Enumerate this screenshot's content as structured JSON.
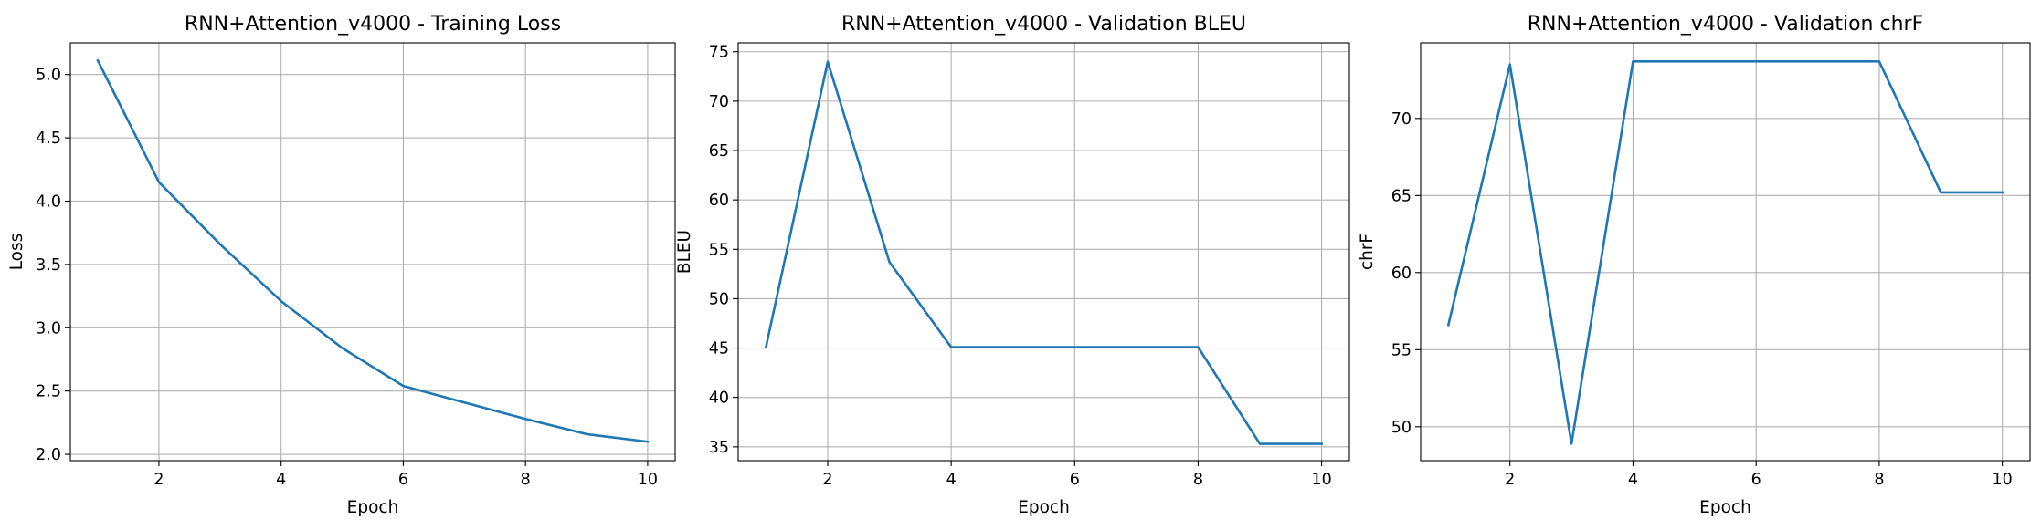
{
  "chart_data": [
    {
      "type": "line",
      "title": "RNN+Attention_v4000 - Training Loss",
      "xlabel": "Epoch",
      "ylabel": "Loss",
      "xlim": [
        0.55,
        10.45
      ],
      "ylim": [
        1.95,
        5.25
      ],
      "xticks": [
        2,
        4,
        6,
        8,
        10
      ],
      "yticks": [
        2.0,
        2.5,
        3.0,
        3.5,
        4.0,
        4.5,
        5.0
      ],
      "ytick_decimals": 1,
      "grid": true,
      "series": [
        {
          "x": [
            1,
            2,
            3,
            4,
            5,
            6,
            7,
            8,
            9,
            10
          ],
          "values": [
            5.11,
            4.15,
            3.66,
            3.21,
            2.84,
            2.54,
            2.41,
            2.28,
            2.16,
            2.1
          ]
        }
      ]
    },
    {
      "type": "line",
      "title": "RNN+Attention_v4000 - Validation BLEU",
      "xlabel": "Epoch",
      "ylabel": "BLEU",
      "xlim": [
        0.55,
        10.45
      ],
      "ylim": [
        33.6,
        75.9
      ],
      "xticks": [
        2,
        4,
        6,
        8,
        10
      ],
      "yticks": [
        35,
        40,
        45,
        50,
        55,
        60,
        65,
        70,
        75
      ],
      "ytick_decimals": 0,
      "grid": true,
      "series": [
        {
          "x": [
            1,
            2,
            3,
            4,
            5,
            6,
            7,
            8,
            9,
            10
          ],
          "values": [
            45.1,
            74.0,
            53.7,
            45.1,
            45.1,
            45.1,
            45.1,
            45.1,
            35.3,
            35.3
          ]
        }
      ]
    },
    {
      "type": "line",
      "title": "RNN+Attention_v4000 - Validation chrF",
      "xlabel": "Epoch",
      "ylabel": "chrF",
      "xlim": [
        0.55,
        10.45
      ],
      "ylim": [
        47.8,
        74.9
      ],
      "xticks": [
        2,
        4,
        6,
        8,
        10
      ],
      "yticks": [
        50,
        55,
        60,
        65,
        70
      ],
      "ytick_decimals": 0,
      "grid": true,
      "series": [
        {
          "x": [
            1,
            2,
            3,
            4,
            5,
            6,
            7,
            8,
            9,
            10
          ],
          "values": [
            56.6,
            73.5,
            48.9,
            73.7,
            73.7,
            73.7,
            73.7,
            73.7,
            65.2,
            65.2
          ]
        }
      ]
    }
  ],
  "colors": {
    "series": "#1f77b4",
    "grid": "#b0b0b0",
    "axes": "#000000"
  }
}
